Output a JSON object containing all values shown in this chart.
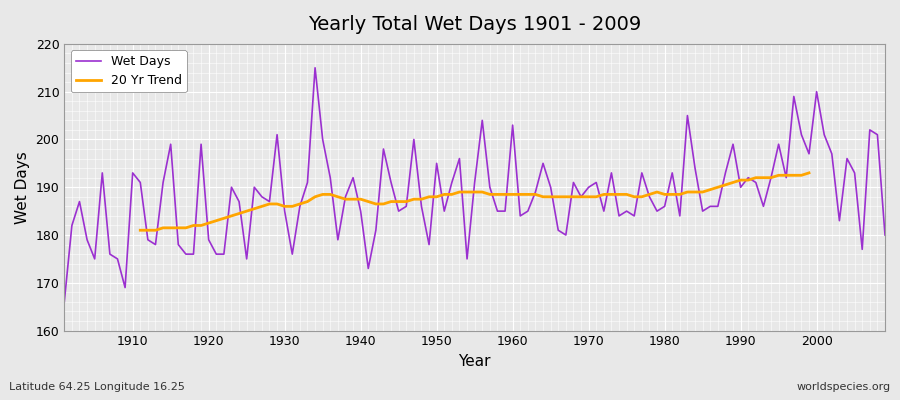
{
  "title": "Yearly Total Wet Days 1901 - 2009",
  "xlabel": "Year",
  "ylabel": "Wet Days",
  "subtitle": "Latitude 64.25 Longitude 16.25",
  "watermark": "worldspecies.org",
  "ylim": [
    160,
    220
  ],
  "xlim": [
    1901,
    2009
  ],
  "yticks": [
    160,
    170,
    180,
    190,
    200,
    210,
    220
  ],
  "xticks": [
    1910,
    1920,
    1930,
    1940,
    1950,
    1960,
    1970,
    1980,
    1990,
    2000
  ],
  "wet_days_color": "#9b30d0",
  "trend_color": "#FFA500",
  "bg_color": "#e8e8e8",
  "plot_bg_color": "#e8e8e8",
  "legend_labels": [
    "Wet Days",
    "20 Yr Trend"
  ],
  "years": [
    1901,
    1902,
    1903,
    1904,
    1905,
    1906,
    1907,
    1908,
    1909,
    1910,
    1911,
    1912,
    1913,
    1914,
    1915,
    1916,
    1917,
    1918,
    1919,
    1920,
    1921,
    1922,
    1923,
    1924,
    1925,
    1926,
    1927,
    1928,
    1929,
    1930,
    1931,
    1932,
    1933,
    1934,
    1935,
    1936,
    1937,
    1938,
    1939,
    1940,
    1941,
    1942,
    1943,
    1944,
    1945,
    1946,
    1947,
    1948,
    1949,
    1950,
    1951,
    1952,
    1953,
    1954,
    1955,
    1956,
    1957,
    1958,
    1959,
    1960,
    1961,
    1962,
    1963,
    1964,
    1965,
    1966,
    1967,
    1968,
    1969,
    1970,
    1971,
    1972,
    1973,
    1974,
    1975,
    1976,
    1977,
    1978,
    1979,
    1980,
    1981,
    1982,
    1983,
    1984,
    1985,
    1986,
    1987,
    1988,
    1989,
    1990,
    1991,
    1992,
    1993,
    1994,
    1995,
    1996,
    1997,
    1998,
    1999,
    2000,
    2001,
    2002,
    2003,
    2004,
    2005,
    2006,
    2007,
    2008,
    2009
  ],
  "wet_days": [
    166,
    182,
    187,
    179,
    175,
    193,
    176,
    175,
    169,
    193,
    191,
    179,
    178,
    191,
    199,
    178,
    176,
    176,
    199,
    179,
    176,
    176,
    190,
    187,
    175,
    190,
    188,
    187,
    201,
    185,
    176,
    186,
    191,
    215,
    200,
    192,
    179,
    188,
    192,
    185,
    173,
    181,
    198,
    191,
    185,
    186,
    200,
    186,
    178,
    195,
    185,
    191,
    196,
    175,
    191,
    204,
    190,
    185,
    185,
    203,
    184,
    185,
    189,
    195,
    190,
    181,
    180,
    191,
    188,
    190,
    191,
    185,
    193,
    184,
    185,
    184,
    193,
    188,
    185,
    186,
    193,
    184,
    205,
    194,
    185,
    186,
    186,
    193,
    199,
    190,
    192,
    191,
    186,
    192,
    199,
    192,
    209,
    201,
    197,
    210,
    201,
    197,
    183,
    196,
    193,
    177,
    202,
    201,
    180
  ],
  "trend_years": [
    1911,
    1912,
    1913,
    1914,
    1915,
    1916,
    1917,
    1918,
    1919,
    1920,
    1921,
    1922,
    1923,
    1924,
    1925,
    1926,
    1927,
    1928,
    1929,
    1930,
    1931,
    1932,
    1933,
    1934,
    1935,
    1936,
    1937,
    1938,
    1939,
    1940,
    1941,
    1942,
    1943,
    1944,
    1945,
    1946,
    1947,
    1948,
    1949,
    1950,
    1951,
    1952,
    1953,
    1954,
    1955,
    1956,
    1957,
    1958,
    1959,
    1960,
    1961,
    1962,
    1963,
    1964,
    1965,
    1966,
    1967,
    1968,
    1969,
    1970,
    1971,
    1972,
    1973,
    1974,
    1975,
    1976,
    1977,
    1978,
    1979,
    1980,
    1981,
    1982,
    1983,
    1984,
    1985,
    1986,
    1987,
    1988,
    1989,
    1990,
    1991,
    1992,
    1993,
    1994,
    1995,
    1996,
    1997,
    1998,
    1999
  ],
  "trend_values": [
    181.0,
    181.0,
    181.0,
    181.5,
    181.5,
    181.5,
    181.5,
    182.0,
    182.0,
    182.5,
    183.0,
    183.5,
    184.0,
    184.5,
    185.0,
    185.5,
    186.0,
    186.5,
    186.5,
    186.0,
    186.0,
    186.5,
    187.0,
    188.0,
    188.5,
    188.5,
    188.0,
    187.5,
    187.5,
    187.5,
    187.0,
    186.5,
    186.5,
    187.0,
    187.0,
    187.0,
    187.5,
    187.5,
    188.0,
    188.0,
    188.5,
    188.5,
    189.0,
    189.0,
    189.0,
    189.0,
    188.5,
    188.5,
    188.5,
    188.5,
    188.5,
    188.5,
    188.5,
    188.0,
    188.0,
    188.0,
    188.0,
    188.0,
    188.0,
    188.0,
    188.0,
    188.5,
    188.5,
    188.5,
    188.5,
    188.0,
    188.0,
    188.5,
    189.0,
    188.5,
    188.5,
    188.5,
    189.0,
    189.0,
    189.0,
    189.5,
    190.0,
    190.5,
    191.0,
    191.5,
    191.5,
    192.0,
    192.0,
    192.0,
    192.5,
    192.5,
    192.5,
    192.5,
    193.0
  ]
}
